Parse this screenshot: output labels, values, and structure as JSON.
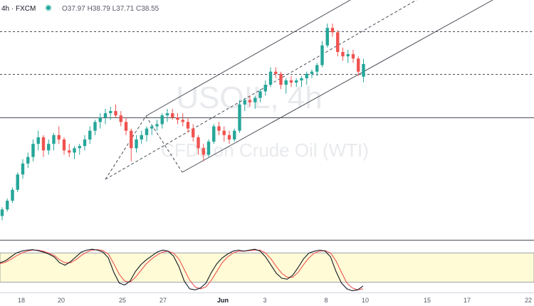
{
  "header": {
    "symbol_feed": "4h · FXCM",
    "ohlc": "O37.97  H38.79  L37.71  C38.55",
    "status_color": "#26a69a"
  },
  "watermark": {
    "line1": "USOIL, 4h",
    "line2": "CFDs on Crude Oil (WTI)"
  },
  "colors": {
    "up": "#26a69a",
    "down": "#ef5350",
    "stoch_k": "#131722",
    "stoch_d": "#ef5350",
    "band_fill": "#fffbd6",
    "line": "#4a4e58"
  },
  "chart_data": {
    "type": "candlestick",
    "x_tick_labels": [
      "18",
      "20",
      "25",
      "27",
      "Jun",
      "3",
      "8",
      "10",
      "15",
      "17",
      "22"
    ],
    "price_scale": {
      "min": 30.6,
      "max": 41.2
    },
    "candles": [
      [
        31.6,
        32.0,
        31.4,
        31.9
      ],
      [
        31.9,
        32.4,
        31.8,
        32.3
      ],
      [
        32.3,
        32.9,
        32.2,
        32.8
      ],
      [
        32.8,
        33.6,
        32.7,
        33.5
      ],
      [
        33.5,
        34.2,
        33.3,
        34.0
      ],
      [
        34.0,
        34.5,
        33.8,
        34.3
      ],
      [
        34.3,
        35.1,
        34.1,
        34.9
      ],
      [
        34.9,
        35.5,
        34.6,
        35.2
      ],
      [
        35.2,
        35.3,
        34.3,
        34.6
      ],
      [
        34.6,
        35.1,
        34.4,
        34.9
      ],
      [
        34.9,
        35.4,
        34.6,
        35.3
      ],
      [
        35.3,
        35.7,
        34.9,
        35.1
      ],
      [
        35.1,
        35.2,
        34.4,
        34.6
      ],
      [
        34.6,
        34.9,
        34.3,
        34.5
      ],
      [
        34.5,
        34.8,
        34.2,
        34.7
      ],
      [
        34.7,
        34.9,
        34.4,
        34.8
      ],
      [
        34.8,
        35.3,
        34.6,
        35.1
      ],
      [
        35.1,
        35.7,
        34.9,
        35.5
      ],
      [
        35.5,
        36.0,
        35.3,
        35.9
      ],
      [
        35.9,
        36.3,
        35.6,
        36.1
      ],
      [
        36.1,
        36.5,
        35.8,
        36.3
      ],
      [
        36.3,
        36.6,
        36.0,
        36.4
      ],
      [
        36.4,
        36.7,
        36.1,
        36.2
      ],
      [
        36.2,
        36.4,
        35.7,
        35.9
      ],
      [
        35.9,
        36.1,
        35.3,
        35.5
      ],
      [
        35.5,
        35.6,
        34.1,
        34.7
      ],
      [
        34.7,
        35.3,
        34.5,
        35.1
      ],
      [
        35.1,
        35.5,
        34.9,
        35.3
      ],
      [
        35.3,
        35.7,
        35.0,
        35.6
      ],
      [
        35.6,
        35.8,
        35.3,
        35.7
      ],
      [
        35.7,
        36.0,
        35.5,
        35.8
      ],
      [
        35.8,
        36.3,
        35.6,
        36.2
      ],
      [
        36.2,
        36.5,
        35.9,
        36.3
      ],
      [
        36.3,
        36.5,
        36.0,
        36.1
      ],
      [
        36.1,
        36.3,
        35.8,
        36.0
      ],
      [
        36.0,
        36.3,
        35.7,
        35.9
      ],
      [
        35.9,
        36.1,
        35.4,
        35.6
      ],
      [
        35.6,
        35.8,
        35.0,
        35.2
      ],
      [
        35.2,
        35.3,
        34.4,
        34.7
      ],
      [
        34.7,
        34.9,
        34.1,
        34.4
      ],
      [
        34.4,
        35.1,
        34.3,
        35.0
      ],
      [
        35.0,
        35.8,
        34.9,
        35.7
      ],
      [
        35.7,
        35.9,
        35.3,
        35.5
      ],
      [
        35.5,
        35.7,
        35.0,
        35.3
      ],
      [
        35.3,
        35.5,
        34.9,
        35.1
      ],
      [
        35.1,
        35.6,
        35.0,
        35.5
      ],
      [
        35.5,
        36.9,
        35.4,
        36.7
      ],
      [
        36.7,
        37.0,
        36.4,
        36.9
      ],
      [
        36.9,
        37.1,
        36.6,
        36.8
      ],
      [
        36.8,
        37.1,
        36.5,
        37.0
      ],
      [
        37.0,
        37.4,
        36.8,
        37.3
      ],
      [
        37.3,
        37.8,
        37.1,
        37.6
      ],
      [
        37.6,
        38.4,
        37.5,
        38.2
      ],
      [
        38.2,
        38.4,
        37.9,
        38.1
      ],
      [
        38.1,
        38.2,
        37.4,
        37.6
      ],
      [
        37.6,
        37.9,
        37.2,
        37.8
      ],
      [
        37.8,
        38.0,
        37.5,
        37.7
      ],
      [
        37.7,
        37.9,
        37.5,
        37.8
      ],
      [
        37.8,
        38.0,
        37.5,
        37.9
      ],
      [
        37.9,
        38.2,
        37.6,
        38.1
      ],
      [
        38.1,
        38.3,
        37.9,
        38.2
      ],
      [
        38.2,
        38.6,
        38.0,
        38.5
      ],
      [
        38.5,
        39.6,
        38.4,
        39.4
      ],
      [
        39.4,
        40.4,
        39.3,
        40.2
      ],
      [
        40.2,
        40.4,
        39.8,
        40.0
      ],
      [
        40.0,
        40.1,
        38.9,
        39.1
      ],
      [
        39.1,
        39.3,
        38.7,
        38.9
      ],
      [
        38.9,
        39.2,
        38.6,
        39.0
      ],
      [
        39.0,
        39.2,
        38.6,
        38.8
      ],
      [
        38.8,
        38.9,
        38.0,
        38.2
      ],
      [
        37.97,
        38.79,
        37.71,
        38.55
      ]
    ],
    "horizontal_levels": [
      40.05,
      38.1,
      36.1
    ],
    "stochastic": {
      "k": [
        60,
        64,
        72,
        80,
        84,
        86,
        87,
        85,
        82,
        78,
        72,
        60,
        55,
        62,
        72,
        82,
        86,
        88,
        86,
        82,
        70,
        40,
        18,
        14,
        22,
        42,
        56,
        66,
        74,
        82,
        86,
        84,
        74,
        52,
        22,
        6,
        4,
        8,
        18,
        40,
        58,
        70,
        78,
        84,
        86,
        84,
        86,
        88,
        84,
        72,
        55,
        38,
        28,
        26,
        34,
        50,
        68,
        80,
        84,
        86,
        84,
        72,
        42,
        18,
        6,
        2,
        4,
        12
      ],
      "d": [
        58,
        61,
        67,
        74,
        80,
        84,
        86,
        86,
        84,
        80,
        75,
        66,
        60,
        60,
        66,
        75,
        82,
        86,
        87,
        85,
        78,
        58,
        36,
        22,
        20,
        30,
        44,
        58,
        68,
        76,
        82,
        84,
        80,
        68,
        46,
        24,
        10,
        6,
        10,
        24,
        42,
        60,
        72,
        80,
        84,
        84,
        85,
        86,
        86,
        80,
        68,
        52,
        38,
        30,
        30,
        40,
        56,
        70,
        80,
        84,
        85,
        80,
        64,
        40,
        18,
        8,
        4,
        6
      ],
      "levels": [
        80,
        20
      ]
    }
  }
}
